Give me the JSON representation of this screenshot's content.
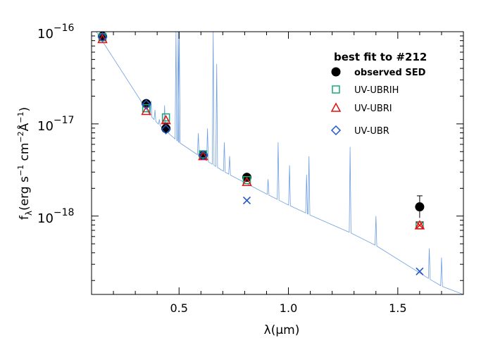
{
  "chart_data": {
    "type": "scatter",
    "title": "",
    "xlabel": "λ(μm)",
    "ylabel": "fλ(erg s⁻¹ cm⁻² Å⁻¹)",
    "ylabel_parts": {
      "f": "f",
      "lambda_sub": "λ",
      "unit_open": "(erg s",
      "exp1": "−1",
      "cm": " cm",
      "exp2": "−2",
      "angstrom": "Å",
      "exp3": "−1",
      "close": ")"
    },
    "xlim": [
      0.1,
      1.8
    ],
    "ylim_log10": [
      -18.85,
      -16.0
    ],
    "x_scale": "linear",
    "y_scale": "log",
    "x_ticks": [
      {
        "value": 0.5,
        "label": "0.5"
      },
      {
        "value": 1.0,
        "label": "1.0"
      },
      {
        "value": 1.5,
        "label": "1.5"
      }
    ],
    "y_ticks": [
      {
        "exp": -16,
        "base": "10",
        "power": "−16"
      },
      {
        "exp": -17,
        "base": "10",
        "power": "−17"
      },
      {
        "exp": -18,
        "base": "10",
        "power": "−18"
      }
    ],
    "legend": {
      "title": "best fit to #212",
      "placement": "top-right",
      "entries": [
        {
          "label": "observed SED",
          "marker": "filled-circle",
          "color": "#000000"
        },
        {
          "label": "UV-UBRIH",
          "marker": "open-square",
          "color": "#18a87a"
        },
        {
          "label": "UV-UBRI",
          "marker": "open-triangle",
          "color": "#e01010"
        },
        {
          "label": "UV-UBR",
          "marker": "open-diamond",
          "color": "#1f56c8"
        }
      ]
    },
    "series": [
      {
        "name": "observed SED",
        "marker": "filled-circle",
        "color": "#000000",
        "points": [
          {
            "x": 0.15,
            "log_y": -16.05,
            "log_err": 0.03
          },
          {
            "x": 0.35,
            "log_y": -16.78,
            "log_err": 0.03
          },
          {
            "x": 0.44,
            "log_y": -17.05,
            "log_err": 0.06
          },
          {
            "x": 0.61,
            "log_y": -17.34,
            "log_err": 0.02
          },
          {
            "x": 0.81,
            "log_y": -17.58,
            "log_err": 0.03
          },
          {
            "x": 1.6,
            "log_y": -17.9,
            "log_err": 0.12
          }
        ]
      },
      {
        "name": "UV-UBRIH",
        "marker": "open-square",
        "color": "#18a87a",
        "points": [
          {
            "x": 0.15,
            "log_y": -16.06
          },
          {
            "x": 0.35,
            "log_y": -16.83
          },
          {
            "x": 0.44,
            "log_y": -16.93
          },
          {
            "x": 0.61,
            "log_y": -17.33
          },
          {
            "x": 0.81,
            "log_y": -17.61
          },
          {
            "x": 1.6,
            "log_y": -18.1
          }
        ]
      },
      {
        "name": "UV-UBRI",
        "marker": "open-triangle",
        "color": "#e01010",
        "points": [
          {
            "x": 0.15,
            "log_y": -16.08
          },
          {
            "x": 0.35,
            "log_y": -16.86
          },
          {
            "x": 0.44,
            "log_y": -16.96
          },
          {
            "x": 0.61,
            "log_y": -17.35
          },
          {
            "x": 0.81,
            "log_y": -17.63
          },
          {
            "x": 1.6,
            "log_y": -18.1
          }
        ]
      },
      {
        "name": "UV-UBR",
        "marker": "open-diamond",
        "color": "#1f56c8",
        "points": [
          {
            "x": 0.15,
            "log_y": -16.06
          },
          {
            "x": 0.35,
            "log_y": -16.79
          },
          {
            "x": 0.44,
            "log_y": -17.06
          },
          {
            "x": 0.61,
            "log_y": -17.34
          }
        ]
      },
      {
        "name": "",
        "marker": "x",
        "color": "#1f56c8",
        "points": [
          {
            "x": 0.81,
            "log_y": -17.83
          },
          {
            "x": 1.6,
            "log_y": -18.6
          }
        ]
      },
      {
        "name": "",
        "marker": "x",
        "color": "#e01010",
        "points": [
          {
            "x": 1.6,
            "log_y": -18.1
          }
        ]
      }
    ],
    "model_spectrum": {
      "color": "#6f9ee0",
      "continuum": [
        [
          0.1,
          -15.92
        ],
        [
          0.15,
          -16.12
        ],
        [
          0.2,
          -16.35
        ],
        [
          0.25,
          -16.55
        ],
        [
          0.3,
          -16.72
        ],
        [
          0.35,
          -16.86
        ],
        [
          0.4,
          -16.99
        ],
        [
          0.45,
          -17.1
        ],
        [
          0.5,
          -17.2
        ],
        [
          0.6,
          -17.36
        ],
        [
          0.7,
          -17.51
        ],
        [
          0.8,
          -17.64
        ],
        [
          0.9,
          -17.76
        ],
        [
          1.0,
          -17.88
        ],
        [
          1.1,
          -17.99
        ],
        [
          1.2,
          -18.09
        ],
        [
          1.3,
          -18.2
        ],
        [
          1.4,
          -18.32
        ],
        [
          1.5,
          -18.46
        ],
        [
          1.6,
          -18.62
        ],
        [
          1.7,
          -18.76
        ],
        [
          1.8,
          -18.85
        ]
      ],
      "lines": [
        {
          "x": 0.372,
          "peak": -16.75
        },
        {
          "x": 0.39,
          "peak": -16.85
        },
        {
          "x": 0.41,
          "peak": -16.95
        },
        {
          "x": 0.434,
          "peak": -16.8
        },
        {
          "x": 0.486,
          "peak": -16.0
        },
        {
          "x": 0.496,
          "peak": -16.0
        },
        {
          "x": 0.501,
          "peak": -16.0
        },
        {
          "x": 0.588,
          "peak": -17.1
        },
        {
          "x": 0.63,
          "peak": -17.05
        },
        {
          "x": 0.656,
          "peak": -16.0
        },
        {
          "x": 0.672,
          "peak": -16.35
        },
        {
          "x": 0.707,
          "peak": -17.2
        },
        {
          "x": 0.731,
          "peak": -17.35
        },
        {
          "x": 0.907,
          "peak": -17.6
        },
        {
          "x": 0.953,
          "peak": -17.2
        },
        {
          "x": 1.005,
          "peak": -17.45
        },
        {
          "x": 1.083,
          "peak": -17.55
        },
        {
          "x": 1.094,
          "peak": -17.35
        },
        {
          "x": 1.282,
          "peak": -17.25
        },
        {
          "x": 1.4,
          "peak": -18.0
        },
        {
          "x": 1.644,
          "peak": -18.35
        },
        {
          "x": 1.7,
          "peak": -18.45
        }
      ]
    }
  }
}
